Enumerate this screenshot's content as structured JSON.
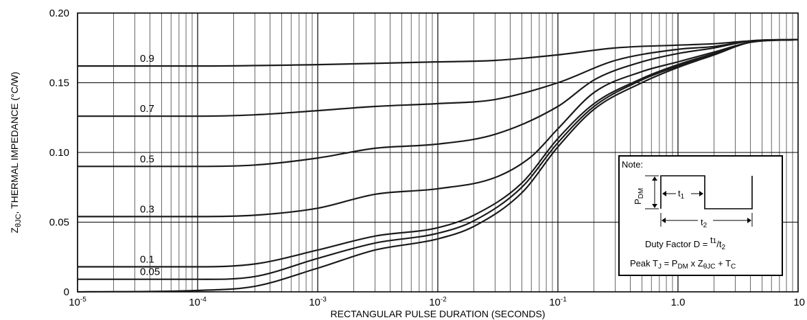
{
  "chart_data": {
    "type": "line",
    "x_scale": "log",
    "xlim": [
      1e-05,
      10
    ],
    "ylim": [
      0,
      0.2
    ],
    "grid": true,
    "xlabel": "RECTANGULAR PULSE DURATION (SECONDS)",
    "ylabel": {
      "base": "Z",
      "sub": "θJC",
      "rest": ", THERMAL IMPEDANCE (°C/W)"
    },
    "x_ticks": [
      {
        "value": 1e-05,
        "base": "10",
        "exp": "-5"
      },
      {
        "value": 0.0001,
        "base": "10",
        "exp": "-4"
      },
      {
        "value": 0.001,
        "base": "10",
        "exp": "-3"
      },
      {
        "value": 0.01,
        "base": "10",
        "exp": "-2"
      },
      {
        "value": 0.1,
        "base": "10",
        "exp": "-1"
      },
      {
        "value": 1,
        "base": "1.0",
        "exp": ""
      },
      {
        "value": 10,
        "base": "10",
        "exp": ""
      }
    ],
    "y_ticks": [
      {
        "value": 0,
        "label": "0"
      },
      {
        "value": 0.05,
        "label": "0.05"
      },
      {
        "value": 0.1,
        "label": "0.10"
      },
      {
        "value": 0.15,
        "label": "0.15"
      },
      {
        "value": 0.2,
        "label": "0.20"
      }
    ],
    "series": [
      {
        "label": "0.9",
        "points": [
          [
            1e-05,
            0.162
          ],
          [
            0.0001,
            0.162
          ],
          [
            0.001,
            0.163
          ],
          [
            0.01,
            0.165
          ],
          [
            0.03,
            0.166
          ],
          [
            0.1,
            0.17
          ],
          [
            0.3,
            0.175
          ],
          [
            1,
            0.177
          ],
          [
            2,
            0.178
          ],
          [
            4,
            0.18
          ],
          [
            10,
            0.181
          ]
        ]
      },
      {
        "label": "0.7",
        "points": [
          [
            1e-05,
            0.126
          ],
          [
            0.0001,
            0.126
          ],
          [
            0.0003,
            0.127
          ],
          [
            0.001,
            0.13
          ],
          [
            0.003,
            0.133
          ],
          [
            0.01,
            0.135
          ],
          [
            0.03,
            0.138
          ],
          [
            0.1,
            0.15
          ],
          [
            0.3,
            0.166
          ],
          [
            1,
            0.174
          ],
          [
            2,
            0.176
          ],
          [
            4,
            0.18
          ],
          [
            10,
            0.181
          ]
        ]
      },
      {
        "label": "0.5",
        "points": [
          [
            1e-05,
            0.09
          ],
          [
            0.0001,
            0.09
          ],
          [
            0.0003,
            0.091
          ],
          [
            0.001,
            0.096
          ],
          [
            0.003,
            0.103
          ],
          [
            0.01,
            0.106
          ],
          [
            0.03,
            0.113
          ],
          [
            0.1,
            0.133
          ],
          [
            0.2,
            0.152
          ],
          [
            0.5,
            0.165
          ],
          [
            1,
            0.171
          ],
          [
            2,
            0.175
          ],
          [
            4,
            0.18
          ],
          [
            10,
            0.181
          ]
        ]
      },
      {
        "label": "0.3",
        "points": [
          [
            1e-05,
            0.054
          ],
          [
            0.0001,
            0.054
          ],
          [
            0.0003,
            0.055
          ],
          [
            0.001,
            0.06
          ],
          [
            0.003,
            0.07
          ],
          [
            0.01,
            0.074
          ],
          [
            0.03,
            0.082
          ],
          [
            0.06,
            0.097
          ],
          [
            0.1,
            0.117
          ],
          [
            0.2,
            0.143
          ],
          [
            0.5,
            0.158
          ],
          [
            1,
            0.165
          ],
          [
            2,
            0.172
          ],
          [
            4,
            0.179
          ],
          [
            10,
            0.181
          ]
        ]
      },
      {
        "label": "0.1",
        "points": [
          [
            1e-05,
            0.018
          ],
          [
            0.0001,
            0.018
          ],
          [
            0.0003,
            0.02
          ],
          [
            0.001,
            0.03
          ],
          [
            0.003,
            0.04
          ],
          [
            0.01,
            0.046
          ],
          [
            0.02,
            0.055
          ],
          [
            0.05,
            0.078
          ],
          [
            0.1,
            0.11
          ],
          [
            0.2,
            0.135
          ],
          [
            0.5,
            0.153
          ],
          [
            1,
            0.163
          ],
          [
            2,
            0.171
          ],
          [
            4,
            0.179
          ],
          [
            10,
            0.181
          ]
        ]
      },
      {
        "label": "0.05",
        "points": [
          [
            1e-05,
            0.009
          ],
          [
            0.0001,
            0.009
          ],
          [
            0.0003,
            0.011
          ],
          [
            0.001,
            0.024
          ],
          [
            0.003,
            0.035
          ],
          [
            0.01,
            0.042
          ],
          [
            0.02,
            0.051
          ],
          [
            0.05,
            0.075
          ],
          [
            0.1,
            0.107
          ],
          [
            0.2,
            0.133
          ],
          [
            0.5,
            0.152
          ],
          [
            1,
            0.162
          ],
          [
            2,
            0.171
          ],
          [
            4,
            0.179
          ],
          [
            10,
            0.181
          ]
        ]
      },
      {
        "label": "",
        "points": [
          [
            1e-05,
            0.0
          ],
          [
            0.0001,
            0.001
          ],
          [
            0.0003,
            0.004
          ],
          [
            0.001,
            0.017
          ],
          [
            0.003,
            0.03
          ],
          [
            0.01,
            0.038
          ],
          [
            0.02,
            0.047
          ],
          [
            0.05,
            0.071
          ],
          [
            0.1,
            0.104
          ],
          [
            0.2,
            0.131
          ],
          [
            0.5,
            0.15
          ],
          [
            1,
            0.161
          ],
          [
            2,
            0.17
          ],
          [
            4,
            0.179
          ],
          [
            10,
            0.181
          ]
        ]
      }
    ]
  },
  "note": {
    "title": "Note:",
    "pdm": "P",
    "pdm_sub": "DM",
    "t1": "t",
    "t1_sub": "1",
    "t2": "t",
    "t2_sub": "2",
    "duty_text": "Duty Factor  D = ",
    "duty_num": "t",
    "duty_num_sub": "1",
    "duty_den": "t",
    "duty_den_sub": "2",
    "peak_a": "Peak T",
    "peak_a_sub": "J",
    "peak_b": " = P",
    "peak_b_sub": "DM",
    "peak_c": " x Z",
    "peak_c_sub": "θJC",
    "peak_d": " + T",
    "peak_d_sub": "C"
  }
}
